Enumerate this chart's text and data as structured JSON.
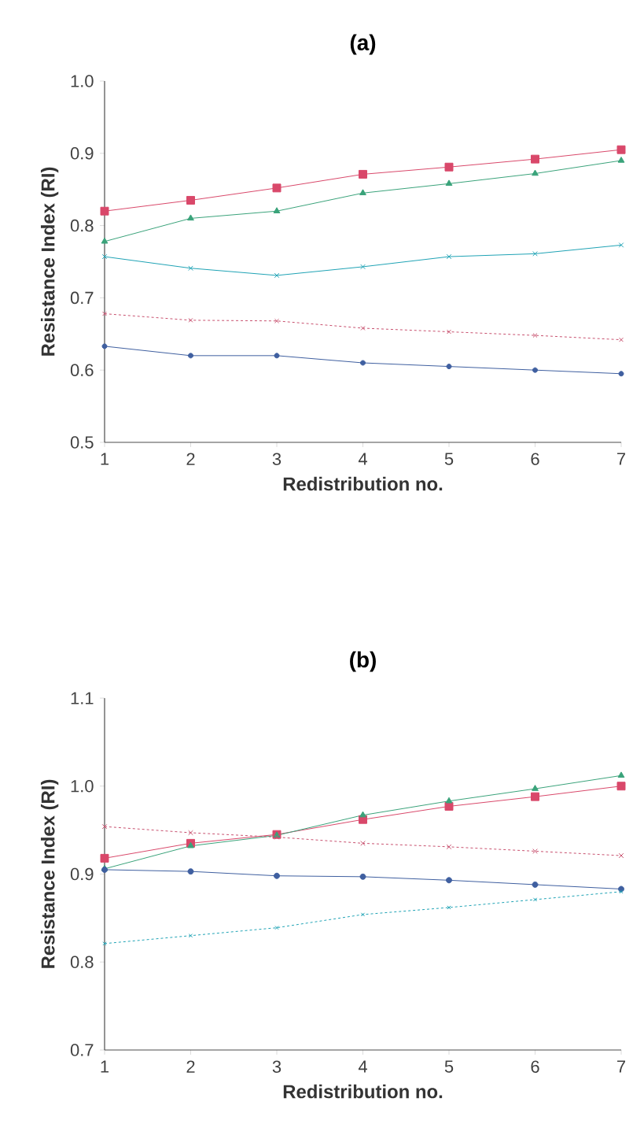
{
  "chart_data": [
    {
      "type": "line",
      "title": "(a)",
      "xlabel": "Redistribution no.",
      "ylabel": "Resistance Index (RI)",
      "x": [
        1,
        2,
        3,
        4,
        5,
        6,
        7
      ],
      "xlim": [
        1,
        7
      ],
      "xticks": [
        1,
        2,
        3,
        4,
        5,
        6,
        7
      ],
      "ylim": [
        0.5,
        1.0
      ],
      "yticks": [
        0.5,
        0.6,
        0.7,
        0.8,
        0.9,
        {
          "value": 1.0,
          "label": "1.0"
        }
      ],
      "series": [
        {
          "color": "#d9486a",
          "marker": "square",
          "line_style": "solid",
          "values": [
            0.82,
            0.835,
            0.852,
            0.871,
            0.881,
            0.892,
            0.905
          ]
        },
        {
          "color": "#3aa37a",
          "marker": "triangle",
          "line_style": "solid",
          "values": [
            0.778,
            0.81,
            0.82,
            0.845,
            0.858,
            0.872,
            0.89
          ]
        },
        {
          "color": "#1fa3b5",
          "marker": "cross",
          "line_style": "solid",
          "values": [
            0.757,
            0.741,
            0.731,
            0.743,
            0.757,
            0.761,
            0.773
          ]
        },
        {
          "color": "#c8506e",
          "marker": "cross",
          "line_style": "dashed",
          "values": [
            0.678,
            0.669,
            0.668,
            0.658,
            0.653,
            0.648,
            0.642
          ]
        },
        {
          "color": "#3f5fa0",
          "marker": "circle",
          "line_style": "solid",
          "values": [
            0.633,
            0.62,
            0.62,
            0.61,
            0.605,
            0.6,
            0.595
          ]
        }
      ]
    },
    {
      "type": "line",
      "title": "(b)",
      "xlabel": "Redistribution no.",
      "ylabel": "Resistance Index (RI)",
      "x": [
        1,
        2,
        3,
        4,
        5,
        6,
        7
      ],
      "xlim": [
        1,
        7
      ],
      "xticks": [
        1,
        2,
        3,
        4,
        5,
        6,
        7
      ],
      "ylim": [
        0.7,
        1.1
      ],
      "yticks": [
        0.7,
        0.8,
        0.9,
        {
          "value": 1.0,
          "label": "1.0"
        },
        1.1
      ],
      "series": [
        {
          "color": "#d9486a",
          "marker": "square",
          "line_style": "solid",
          "values": [
            0.918,
            0.935,
            0.945,
            0.962,
            0.977,
            0.988,
            1.0
          ]
        },
        {
          "color": "#3aa37a",
          "marker": "triangle",
          "line_style": "solid",
          "values": [
            0.906,
            0.932,
            0.944,
            0.967,
            0.983,
            0.997,
            1.012
          ]
        },
        {
          "color": "#c8506e",
          "marker": "cross",
          "line_style": "dashed",
          "values": [
            0.954,
            0.947,
            0.942,
            0.935,
            0.931,
            0.926,
            0.921
          ]
        },
        {
          "color": "#3f5fa0",
          "marker": "circle",
          "line_style": "solid",
          "values": [
            0.905,
            0.903,
            0.898,
            0.897,
            0.893,
            0.888,
            0.883
          ]
        },
        {
          "color": "#1fa3b5",
          "marker": "cross",
          "line_style": "dashed",
          "values": [
            0.821,
            0.83,
            0.839,
            0.854,
            0.862,
            0.871,
            0.88
          ]
        }
      ]
    }
  ]
}
